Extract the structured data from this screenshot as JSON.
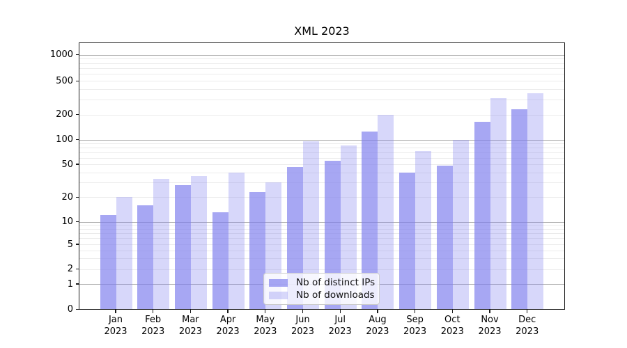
{
  "title": "XML 2023",
  "chart_data": {
    "type": "bar",
    "title": "XML 2023",
    "yscale": "log-style with 0 baseline (ticks 0,1,2,5,10,20,50,100,200,500,1000)",
    "grid": "horizontal major (decades, darker) + minor (light)",
    "legend_position": "lower center, inside plot",
    "categories": [
      "Jan 2023",
      "Feb 2023",
      "Mar 2023",
      "Apr 2023",
      "May 2023",
      "Jun 2023",
      "Jul 2023",
      "Aug 2023",
      "Sep 2023",
      "Oct 2023",
      "Nov 2023",
      "Dec 2023"
    ],
    "series": [
      {
        "name": "Nb of distinct IPs",
        "color": "rgba(125,125,238,0.68)",
        "values": [
          12,
          16,
          28,
          13,
          23,
          46,
          55,
          125,
          40,
          48,
          165,
          230
        ]
      },
      {
        "name": "Nb of downloads",
        "color": "rgba(125,125,238,0.31)",
        "values": [
          20,
          33,
          36,
          40,
          30,
          95,
          85,
          200,
          72,
          100,
          310,
          360
        ]
      }
    ],
    "yticks": [
      0,
      1,
      2,
      5,
      10,
      20,
      50,
      100,
      200,
      500,
      1000
    ],
    "ytick_labels": [
      "0",
      "1",
      "2",
      "5",
      "10",
      "20",
      "50",
      "100",
      "200",
      "500",
      "1000"
    ],
    "ylim_top_label": "1000"
  },
  "legend": {
    "items": [
      "Nb of distinct IPs",
      "Nb of downloads"
    ]
  },
  "colors": {
    "bar_dark": "rgba(125,125,238,0.68)",
    "bar_light": "rgba(125,125,238,0.31)",
    "grid_major": "#ababab",
    "grid_minor": "#ebebeb",
    "spine": "#1a1a1a"
  }
}
